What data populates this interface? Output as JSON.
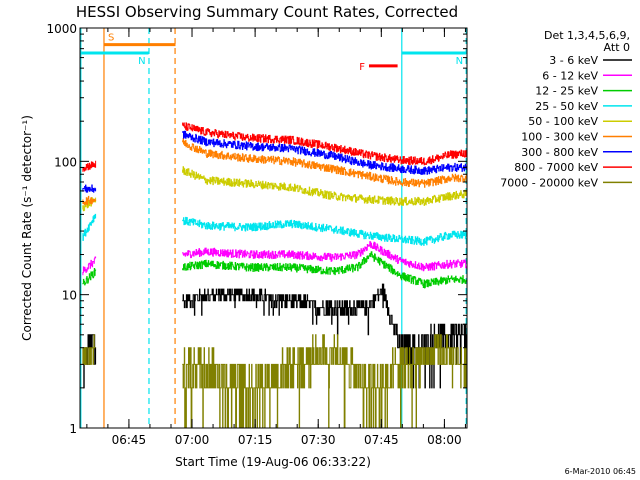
{
  "colors": {
    "background": "#ffffff",
    "axis": "#000000",
    "attenuator_S": "#ff7f00",
    "flare_F": "#ff0000",
    "night_N": "#00e5ee"
  },
  "chart_data": {
    "type": "line",
    "title": "HESSI Observing Summary Count Rates, Corrected",
    "xlabel": "Start Time (19-Aug-06 06:33:22)",
    "ylabel": "Corrected Count Rate (s⁻¹ detector⁻¹)",
    "y_scale": "log",
    "ylim": [
      1,
      1000
    ],
    "xlim_minutes": [
      0,
      92
    ],
    "x_ticks": [
      {
        "minute": 11.63,
        "label": "06:45"
      },
      {
        "minute": 26.63,
        "label": "07:00"
      },
      {
        "minute": 41.63,
        "label": "07:15"
      },
      {
        "minute": 56.63,
        "label": "07:30"
      },
      {
        "minute": 71.63,
        "label": "07:45"
      },
      {
        "minute": 86.63,
        "label": "08:00"
      }
    ],
    "y_ticks": [
      {
        "value": 1,
        "label": "1"
      },
      {
        "value": 10,
        "label": "10"
      },
      {
        "value": 100,
        "label": "100"
      },
      {
        "value": 1000,
        "label": "1000"
      }
    ],
    "legend": {
      "header_line1": "Det 1,3,4,5,6,9,",
      "header_line2": "Att 0",
      "placement": "right"
    },
    "markers": [
      {
        "label": "S",
        "color": "#ff7f00",
        "level": 750,
        "x_start": 5.7,
        "x_end": 22.7
      },
      {
        "label": "N",
        "color": "#00e5ee",
        "level": 650,
        "x_start": 0.3,
        "x_end": 16.3
      },
      {
        "label": "N",
        "color": "#00e5ee",
        "level": 650,
        "x_start": 76.5,
        "x_end": 91.8
      },
      {
        "label": "F",
        "color": "#ff0000",
        "level": 520,
        "x_start": 68.7,
        "x_end": 75.5
      }
    ],
    "vlines": [
      {
        "minute": 0.2,
        "color": "#00e5ee",
        "style": "solid"
      },
      {
        "minute": 5.7,
        "color": "#ff7f00",
        "style": "solid"
      },
      {
        "minute": 16.4,
        "color": "#00e5ee",
        "style": "dash"
      },
      {
        "minute": 22.6,
        "color": "#ff7f00",
        "style": "dash"
      },
      {
        "minute": 76.5,
        "color": "#00e5ee",
        "style": "solid"
      },
      {
        "minute": 91.8,
        "color": "#00e5ee",
        "style": "dash"
      }
    ],
    "segments": [
      [
        0.6,
        3.7
      ],
      [
        24.3,
        91.9
      ]
    ],
    "series": [
      {
        "name": "3 - 6 keV",
        "color": "#000000",
        "kind": "quantized",
        "x": [
          0.6,
          3.7,
          24.3,
          30,
          40,
          50,
          60,
          68,
          72,
          76,
          80,
          85,
          91.9
        ],
        "y": [
          3,
          5,
          9,
          10,
          10,
          9,
          8,
          8,
          11,
          4,
          4,
          5,
          5
        ]
      },
      {
        "name": "6 - 12 keV",
        "color": "#ff00ff",
        "kind": "noisy",
        "x": [
          0.6,
          3.7,
          24.3,
          30,
          40,
          50,
          60,
          66,
          69,
          71,
          76,
          82,
          88,
          91.9
        ],
        "y": [
          15,
          18,
          20,
          21,
          20,
          20,
          19,
          20,
          24,
          22,
          18,
          16,
          17,
          17
        ]
      },
      {
        "name": "12 - 25 keV",
        "color": "#00cc00",
        "kind": "noisy",
        "x": [
          0.6,
          3.7,
          24.3,
          30,
          40,
          50,
          60,
          66,
          69,
          71,
          76,
          82,
          88,
          91.9
        ],
        "y": [
          12,
          15,
          16,
          17,
          16,
          16,
          15,
          16,
          20,
          18,
          14,
          12,
          13,
          13
        ]
      },
      {
        "name": "25 - 50 keV",
        "color": "#00e5ee",
        "kind": "noisy",
        "x": [
          0.6,
          3.7,
          24.3,
          30,
          40,
          50,
          60,
          68,
          76,
          82,
          88,
          91.9
        ],
        "y": [
          27,
          40,
          36,
          33,
          32,
          34,
          31,
          28,
          26,
          25,
          28,
          28
        ]
      },
      {
        "name": "50 - 100 keV",
        "color": "#cccc00",
        "kind": "noisy",
        "x": [
          0.6,
          3.7,
          24.3,
          30,
          40,
          50,
          60,
          68,
          76,
          82,
          88,
          91.9
        ],
        "y": [
          45,
          52,
          86,
          72,
          68,
          64,
          55,
          52,
          50,
          50,
          55,
          57
        ]
      },
      {
        "name": "100 - 300 keV",
        "color": "#ff7f00",
        "kind": "noisy",
        "x": [
          0.6,
          3.7,
          24.3,
          30,
          40,
          50,
          60,
          68,
          76,
          82,
          88,
          91.9
        ],
        "y": [
          50,
          52,
          140,
          115,
          105,
          100,
          88,
          78,
          70,
          68,
          75,
          75
        ]
      },
      {
        "name": "300 - 800 keV",
        "color": "#0000ff",
        "kind": "noisy",
        "x": [
          0.6,
          3.7,
          24.3,
          30,
          40,
          50,
          60,
          68,
          76,
          82,
          88,
          91.9
        ],
        "y": [
          62,
          62,
          160,
          140,
          130,
          125,
          110,
          95,
          88,
          85,
          90,
          90
        ]
      },
      {
        "name": "800 - 7000 keV",
        "color": "#ff0000",
        "kind": "noisy",
        "x": [
          0.6,
          3.7,
          24.3,
          30,
          40,
          50,
          60,
          68,
          76,
          82,
          88,
          91.9
        ],
        "y": [
          90,
          95,
          185,
          165,
          150,
          145,
          128,
          112,
          102,
          100,
          112,
          115
        ]
      },
      {
        "name": "7000 - 20000 keV",
        "color": "#808000",
        "kind": "quantized",
        "x": [
          0.6,
          3.7,
          24.3,
          30,
          40,
          50,
          60,
          64,
          68,
          72,
          76,
          80,
          85,
          91.9
        ],
        "y": [
          3,
          4,
          3,
          3,
          2,
          3,
          4,
          3,
          2,
          2,
          3,
          3,
          4,
          3
        ]
      }
    ]
  },
  "footer_date": "6-Mar-2010 06:45"
}
